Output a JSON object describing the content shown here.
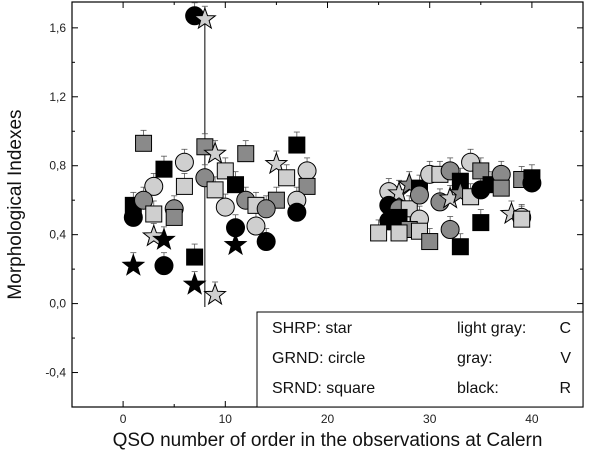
{
  "chart_data": {
    "type": "scatter",
    "title": "",
    "xlabel": "QSO number of order in the observations at Calern",
    "ylabel": "Morphological Indexes",
    "xlim": [
      -5,
      45
    ],
    "ylim": [
      -0.6,
      1.75
    ],
    "xticks": [
      0,
      10,
      20,
      30,
      40
    ],
    "yticks": [
      -0.4,
      0.0,
      0.4,
      0.8,
      1.2,
      1.6
    ],
    "ytick_labels": [
      "-0,4",
      "0,0",
      "0,4",
      "0,8",
      "1,2",
      "1,6"
    ],
    "grid": false,
    "legend_position": "bottom-right",
    "legend": {
      "shapes": [
        {
          "code": "SHRP",
          "label": "SHRP: star"
        },
        {
          "code": "GRND",
          "label": "GRND: circle"
        },
        {
          "code": "SRND",
          "label": "SRND: square"
        }
      ],
      "colors": [
        {
          "label": "light gray:",
          "band": "C"
        },
        {
          "label": "gray:",
          "band": "V"
        },
        {
          "label": "black:",
          "band": "R"
        }
      ]
    },
    "colors": {
      "light": "#cfcfcf",
      "gray": "#8a8a8a",
      "black": "#000000"
    },
    "points": [
      {
        "x": 7,
        "y": 1.67,
        "shape": "circle",
        "color": "black"
      },
      {
        "x": 8,
        "y": 1.65,
        "shape": "star",
        "color": "light"
      },
      {
        "x": 2,
        "y": 0.93,
        "shape": "square",
        "color": "gray"
      },
      {
        "x": 8,
        "y": 0.91,
        "shape": "square",
        "color": "gray"
      },
      {
        "x": 9,
        "y": 0.87,
        "shape": "star",
        "color": "light"
      },
      {
        "x": 12,
        "y": 0.87,
        "shape": "square",
        "color": "gray"
      },
      {
        "x": 6,
        "y": 0.82,
        "shape": "circle",
        "color": "light"
      },
      {
        "x": 17,
        "y": 0.92,
        "shape": "square",
        "color": "black"
      },
      {
        "x": 15,
        "y": 0.81,
        "shape": "star",
        "color": "light"
      },
      {
        "x": 4,
        "y": 0.78,
        "shape": "square",
        "color": "black"
      },
      {
        "x": 10,
        "y": 0.77,
        "shape": "square",
        "color": "light"
      },
      {
        "x": 18,
        "y": 0.77,
        "shape": "circle",
        "color": "light"
      },
      {
        "x": 3,
        "y": 0.68,
        "shape": "circle",
        "color": "light"
      },
      {
        "x": 6,
        "y": 0.68,
        "shape": "square",
        "color": "light"
      },
      {
        "x": 8,
        "y": 0.73,
        "shape": "circle",
        "color": "gray"
      },
      {
        "x": 11,
        "y": 0.69,
        "shape": "square",
        "color": "black"
      },
      {
        "x": 16,
        "y": 0.73,
        "shape": "square",
        "color": "light"
      },
      {
        "x": 18,
        "y": 0.68,
        "shape": "square",
        "color": "gray"
      },
      {
        "x": 1,
        "y": 0.57,
        "shape": "square",
        "color": "black"
      },
      {
        "x": 2,
        "y": 0.6,
        "shape": "circle",
        "color": "gray"
      },
      {
        "x": 5,
        "y": 0.55,
        "shape": "circle",
        "color": "gray"
      },
      {
        "x": 9,
        "y": 0.66,
        "shape": "square",
        "color": "light"
      },
      {
        "x": 12,
        "y": 0.6,
        "shape": "circle",
        "color": "gray"
      },
      {
        "x": 13,
        "y": 0.57,
        "shape": "square",
        "color": "light"
      },
      {
        "x": 15,
        "y": 0.6,
        "shape": "square",
        "color": "gray"
      },
      {
        "x": 17,
        "y": 0.6,
        "shape": "circle",
        "color": "light"
      },
      {
        "x": 1,
        "y": 0.5,
        "shape": "circle",
        "color": "black"
      },
      {
        "x": 3,
        "y": 0.52,
        "shape": "square",
        "color": "light"
      },
      {
        "x": 5,
        "y": 0.5,
        "shape": "square",
        "color": "gray"
      },
      {
        "x": 10,
        "y": 0.56,
        "shape": "circle",
        "color": "light"
      },
      {
        "x": 14,
        "y": 0.55,
        "shape": "circle",
        "color": "gray"
      },
      {
        "x": 17,
        "y": 0.53,
        "shape": "circle",
        "color": "black"
      },
      {
        "x": 11,
        "y": 0.44,
        "shape": "circle",
        "color": "black"
      },
      {
        "x": 13,
        "y": 0.45,
        "shape": "circle",
        "color": "light"
      },
      {
        "x": 3,
        "y": 0.39,
        "shape": "star",
        "color": "light"
      },
      {
        "x": 4,
        "y": 0.37,
        "shape": "star",
        "color": "black"
      },
      {
        "x": 14,
        "y": 0.36,
        "shape": "circle",
        "color": "black"
      },
      {
        "x": 11,
        "y": 0.34,
        "shape": "star",
        "color": "black"
      },
      {
        "x": 7,
        "y": 0.27,
        "shape": "square",
        "color": "black"
      },
      {
        "x": 1,
        "y": 0.22,
        "shape": "star",
        "color": "black"
      },
      {
        "x": 4,
        "y": 0.22,
        "shape": "circle",
        "color": "black"
      },
      {
        "x": 7,
        "y": 0.11,
        "shape": "star",
        "color": "black"
      },
      {
        "x": 9,
        "y": 0.05,
        "shape": "star",
        "color": "light"
      },
      {
        "x": 26,
        "y": 0.65,
        "shape": "circle",
        "color": "light"
      },
      {
        "x": 27,
        "y": 0.64,
        "shape": "star",
        "color": "light"
      },
      {
        "x": 28,
        "y": 0.69,
        "shape": "star",
        "color": "gray"
      },
      {
        "x": 29,
        "y": 0.67,
        "shape": "square",
        "color": "black"
      },
      {
        "x": 30,
        "y": 0.75,
        "shape": "circle",
        "color": "light"
      },
      {
        "x": 31,
        "y": 0.75,
        "shape": "square",
        "color": "light"
      },
      {
        "x": 32,
        "y": 0.77,
        "shape": "circle",
        "color": "gray"
      },
      {
        "x": 33,
        "y": 0.71,
        "shape": "square",
        "color": "black"
      },
      {
        "x": 34,
        "y": 0.82,
        "shape": "circle",
        "color": "light"
      },
      {
        "x": 35,
        "y": 0.77,
        "shape": "square",
        "color": "gray"
      },
      {
        "x": 36,
        "y": 0.69,
        "shape": "square",
        "color": "black"
      },
      {
        "x": 37,
        "y": 0.75,
        "shape": "circle",
        "color": "gray"
      },
      {
        "x": 39,
        "y": 0.72,
        "shape": "square",
        "color": "gray"
      },
      {
        "x": 40,
        "y": 0.7,
        "shape": "circle",
        "color": "black"
      },
      {
        "x": 40,
        "y": 0.73,
        "shape": "square",
        "color": "black"
      },
      {
        "x": 26,
        "y": 0.57,
        "shape": "circle",
        "color": "black"
      },
      {
        "x": 27,
        "y": 0.55,
        "shape": "circle",
        "color": "gray"
      },
      {
        "x": 28,
        "y": 0.55,
        "shape": "square",
        "color": "light"
      },
      {
        "x": 29,
        "y": 0.63,
        "shape": "circle",
        "color": "gray"
      },
      {
        "x": 31,
        "y": 0.59,
        "shape": "circle",
        "color": "gray"
      },
      {
        "x": 32,
        "y": 0.61,
        "shape": "star",
        "color": "light"
      },
      {
        "x": 33,
        "y": 0.64,
        "shape": "star",
        "color": "gray"
      },
      {
        "x": 34,
        "y": 0.62,
        "shape": "square",
        "color": "light"
      },
      {
        "x": 35,
        "y": 0.66,
        "shape": "circle",
        "color": "black"
      },
      {
        "x": 37,
        "y": 0.67,
        "shape": "square",
        "color": "gray"
      },
      {
        "x": 38,
        "y": 0.52,
        "shape": "star",
        "color": "light"
      },
      {
        "x": 39,
        "y": 0.5,
        "shape": "circle",
        "color": "light"
      },
      {
        "x": 39,
        "y": 0.49,
        "shape": "square",
        "color": "light"
      },
      {
        "x": 26,
        "y": 0.48,
        "shape": "circle",
        "color": "black"
      },
      {
        "x": 27,
        "y": 0.5,
        "shape": "square",
        "color": "black"
      },
      {
        "x": 29,
        "y": 0.49,
        "shape": "circle",
        "color": "light"
      },
      {
        "x": 28,
        "y": 0.43,
        "shape": "square",
        "color": "gray"
      },
      {
        "x": 25,
        "y": 0.41,
        "shape": "square",
        "color": "light"
      },
      {
        "x": 27,
        "y": 0.41,
        "shape": "square",
        "color": "light"
      },
      {
        "x": 29,
        "y": 0.42,
        "shape": "square",
        "color": "light"
      },
      {
        "x": 30,
        "y": 0.36,
        "shape": "square",
        "color": "gray"
      },
      {
        "x": 32,
        "y": 0.43,
        "shape": "circle",
        "color": "gray"
      },
      {
        "x": 33,
        "y": 0.33,
        "shape": "square",
        "color": "black"
      },
      {
        "x": 35,
        "y": 0.47,
        "shape": "square",
        "color": "black"
      }
    ]
  }
}
